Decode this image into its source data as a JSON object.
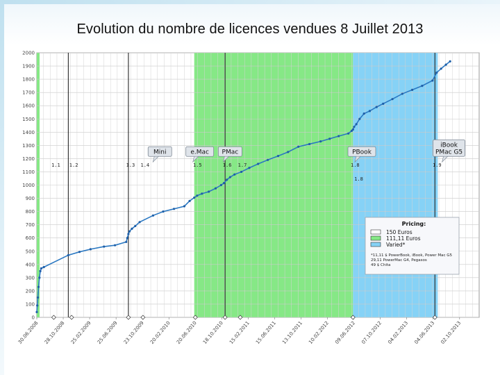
{
  "title": "Evolution du nombre de licences vendues 8 Juillet 2013",
  "chart_data": {
    "type": "line",
    "title": "Evolution du nombre de licences vendues 8 Juillet 2013",
    "xlabel": "",
    "ylabel": "",
    "ylim": [
      0,
      2000
    ],
    "y_ticks": [
      0,
      100,
      200,
      300,
      400,
      500,
      600,
      700,
      800,
      900,
      1000,
      1100,
      1200,
      1300,
      1400,
      1500,
      1600,
      1700,
      1800,
      1900,
      2000
    ],
    "x_range": [
      "2008-06-30",
      "2013-12-30"
    ],
    "x_ticks": [
      {
        "date": "2008-06-30",
        "label": "30.06.2008"
      },
      {
        "date": "2008-10-28",
        "label": "28.10.2008"
      },
      {
        "date": "2009-02-25",
        "label": "25.02.2009"
      },
      {
        "date": "2009-06-25",
        "label": "25.06.2009"
      },
      {
        "date": "2009-10-23",
        "label": "23.10.2009"
      },
      {
        "date": "2010-02-20",
        "label": "20.02.2010"
      },
      {
        "date": "2010-06-20",
        "label": "20.06.2010"
      },
      {
        "date": "2010-10-18",
        "label": "18.10.2010"
      },
      {
        "date": "2011-02-15",
        "label": "15.02.2011"
      },
      {
        "date": "2011-06-15",
        "label": "15.06.2011"
      },
      {
        "date": "2011-10-13",
        "label": "13.10.2011"
      },
      {
        "date": "2012-02-10",
        "label": "10.02.2012"
      },
      {
        "date": "2012-06-09",
        "label": "09.06.2012"
      },
      {
        "date": "2012-10-07",
        "label": "07.10.2012"
      },
      {
        "date": "2013-02-04",
        "label": "04.02.2013"
      },
      {
        "date": "2013-06-04",
        "label": "04.06.2013"
      },
      {
        "date": "2013-10-02",
        "label": "02.10.2013"
      }
    ],
    "grid": true,
    "legend_placement": "bottom-right",
    "pricing_regions": [
      {
        "start": "2008-06-30",
        "end": "2010-06-15",
        "label": "150 Euros",
        "color": "#ffffff"
      },
      {
        "start": "2010-06-15",
        "end": "2012-06-05",
        "label": "111,11 Euros",
        "color": "#86e886"
      },
      {
        "start": "2012-06-05",
        "end": "2013-06-25",
        "label": "Varied*",
        "color": "#86d2f6"
      }
    ],
    "release_lines": [
      "2008-11-20",
      "2009-08-20",
      "2010-11-02",
      "2013-06-12"
    ],
    "versions": [
      {
        "label": "1.1",
        "date": "2008-09-15"
      },
      {
        "label": "1.2",
        "date": "2008-12-05"
      },
      {
        "label": "1.3",
        "date": "2009-08-20"
      },
      {
        "label": "1.4",
        "date": "2009-10-25"
      },
      {
        "label": "1.5",
        "date": "2010-06-20"
      },
      {
        "label": "1.6",
        "date": "2010-11-02"
      },
      {
        "label": "1.7",
        "date": "2011-01-10"
      },
      {
        "label": "1.8",
        "date": "2012-06-05"
      },
      {
        "label": "1.9",
        "date": "2013-06-12"
      }
    ],
    "version_note": {
      "label": "1.8",
      "date": "2012-07-01",
      "value": 1035
    },
    "annotations": [
      {
        "text": "Mini",
        "date": "2010-01-10",
        "value": 1290
      },
      {
        "text": "e.Mac",
        "date": "2010-07-10",
        "value": 1290
      },
      {
        "text": "PMac",
        "date": "2010-11-25",
        "value": 1290
      },
      {
        "text": "PBook",
        "date": "2012-07-15",
        "value": 1290
      },
      {
        "text": "iBook PMac G5",
        "date": "2013-08-15",
        "value": 1290
      }
    ],
    "legend": {
      "title": "Pricing:",
      "entries": [
        {
          "label": "150 Euros",
          "color": "#ffffff"
        },
        {
          "label": "111,11 Euros",
          "color": "#86e886"
        },
        {
          "label": "Varied*",
          "color": "#86d2f6"
        }
      ],
      "notes": [
        "*11,11 $ PowerBook, iBook, Power Mac G5",
        "29,11 PowerMac G4, Pegasos",
        "49 $ Chita"
      ]
    },
    "series": [
      {
        "color": "#2a78c2",
        "x": [
          "2008-06-30",
          "2008-07-02",
          "2008-07-05",
          "2008-07-08",
          "2008-07-12",
          "2008-07-16",
          "2008-07-20",
          "2008-08-01",
          "2008-11-20",
          "2009-01-10",
          "2009-03-01",
          "2009-05-01",
          "2009-06-20",
          "2009-08-10",
          "2009-08-15",
          "2009-08-20",
          "2009-08-25",
          "2009-09-05",
          "2009-09-20",
          "2009-10-10",
          "2009-12-10",
          "2010-01-25",
          "2010-03-15",
          "2010-05-01",
          "2010-05-25",
          "2010-06-15",
          "2010-06-28",
          "2010-07-20",
          "2010-08-20",
          "2010-09-20",
          "2010-10-15",
          "2010-10-28",
          "2010-11-10",
          "2010-11-25",
          "2010-12-15",
          "2011-01-15",
          "2011-02-20",
          "2011-04-01",
          "2011-05-15",
          "2011-07-01",
          "2011-08-15",
          "2011-10-01",
          "2011-11-20",
          "2012-01-10",
          "2012-02-20",
          "2012-04-01",
          "2012-05-15",
          "2012-05-30",
          "2012-06-05",
          "2012-06-10",
          "2012-06-20",
          "2012-07-05",
          "2012-07-25",
          "2012-08-20",
          "2012-09-20",
          "2012-10-20",
          "2012-12-01",
          "2013-01-15",
          "2013-03-01",
          "2013-04-15",
          "2013-06-01",
          "2013-06-20",
          "2013-07-10",
          "2013-08-01",
          "2013-08-20"
        ],
        "values": [
          40,
          90,
          150,
          230,
          300,
          350,
          370,
          380,
          470,
          495,
          515,
          535,
          545,
          570,
          600,
          630,
          650,
          670,
          690,
          720,
          770,
          800,
          820,
          840,
          880,
          905,
          920,
          935,
          950,
          975,
          1000,
          1015,
          1040,
          1060,
          1080,
          1100,
          1130,
          1160,
          1190,
          1220,
          1250,
          1290,
          1310,
          1330,
          1350,
          1370,
          1390,
          1410,
          1420,
          1440,
          1460,
          1500,
          1540,
          1560,
          1590,
          1615,
          1650,
          1690,
          1720,
          1750,
          1790,
          1850,
          1880,
          1910,
          1935
        ]
      }
    ]
  }
}
